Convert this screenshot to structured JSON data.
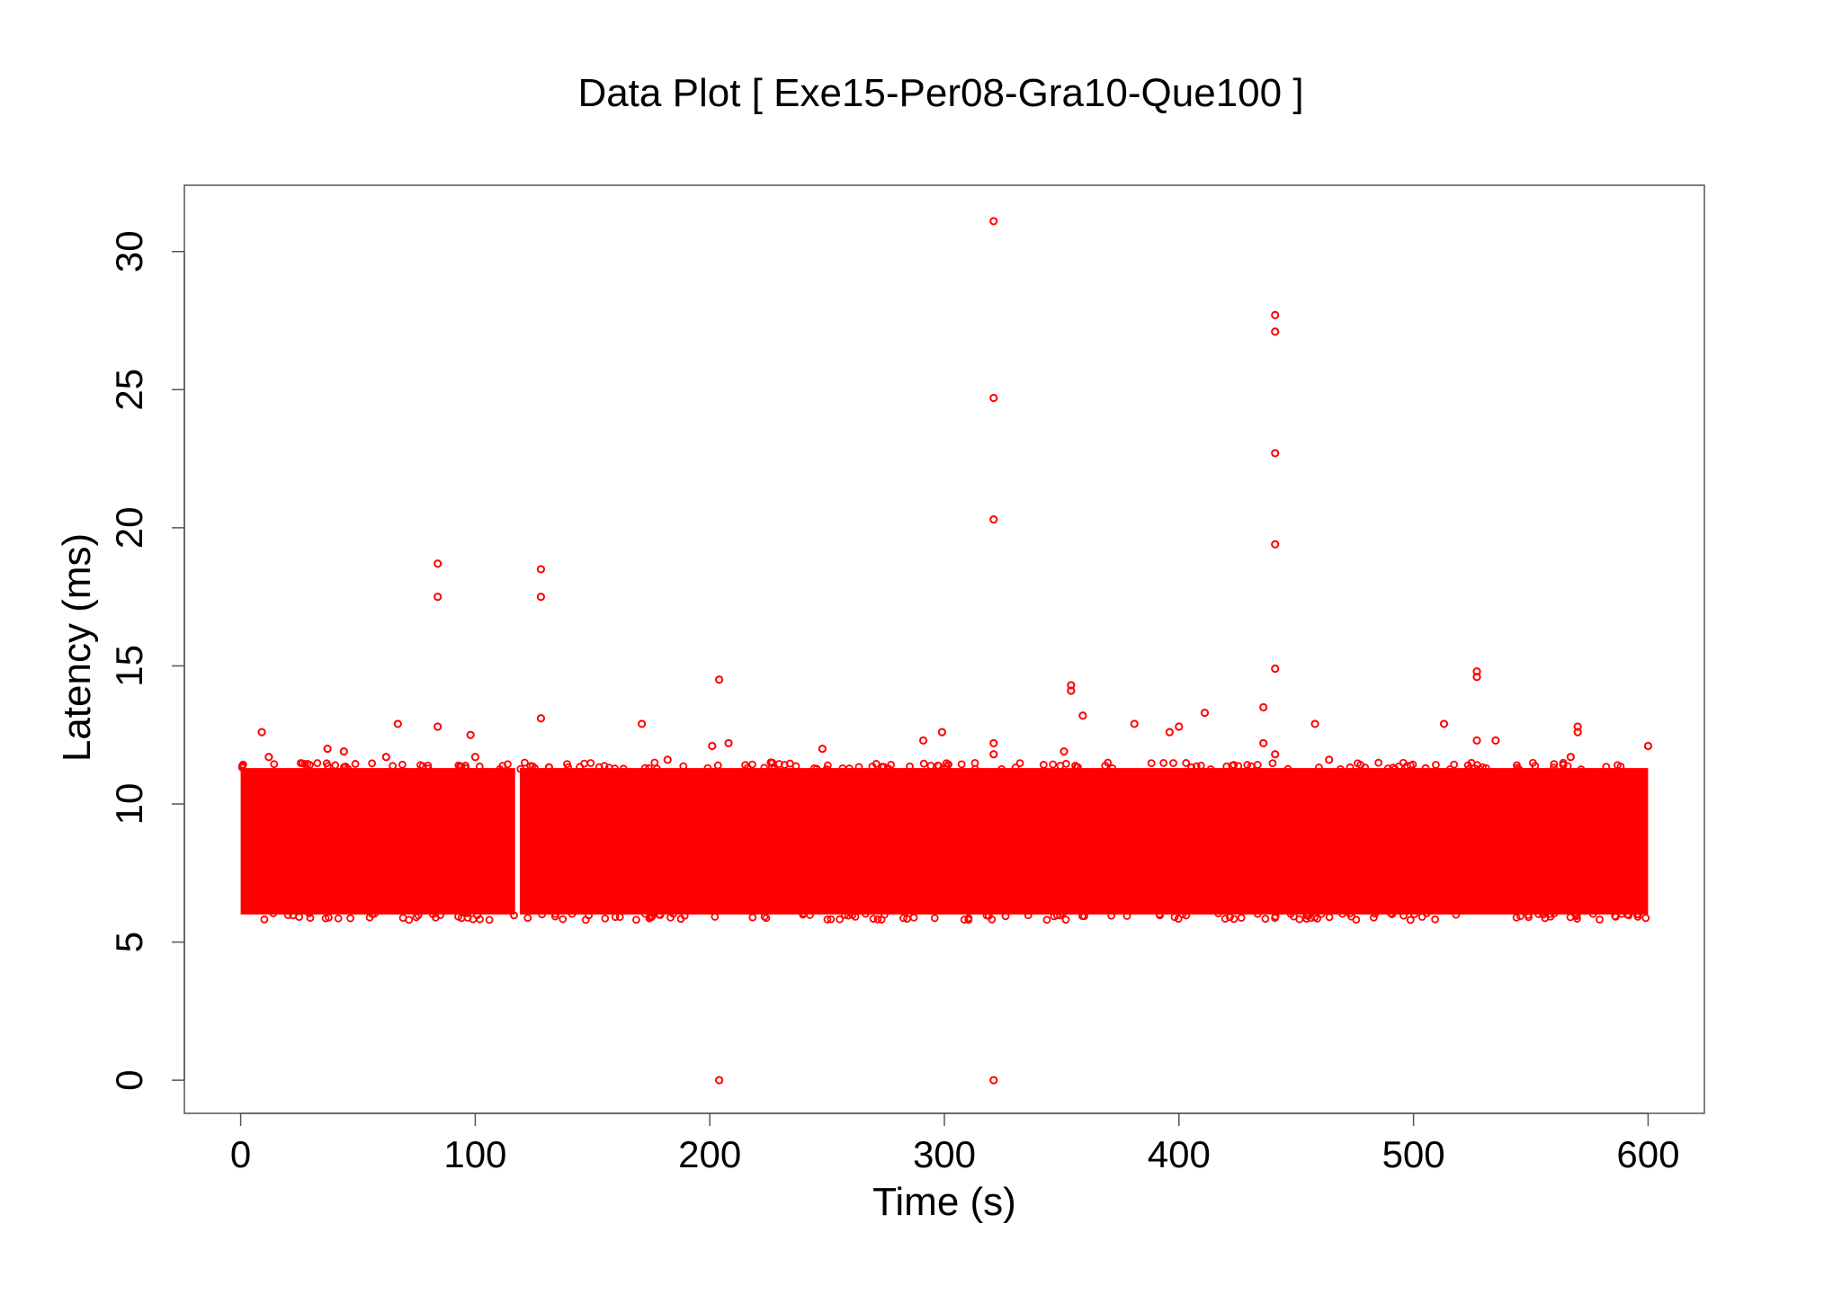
{
  "chart_data": {
    "type": "scatter",
    "title": "Data Plot [ Exe15-Per08-Gra10-Que100 ]",
    "xlabel": "Time (s)",
    "ylabel": "Latency (ms)",
    "xlim": [
      -24,
      624
    ],
    "ylim": [
      -1.2,
      32.4
    ],
    "xticks": [
      0,
      100,
      200,
      300,
      400,
      500,
      600
    ],
    "yticks": [
      0,
      5,
      10,
      15,
      20,
      25,
      30
    ],
    "x_tick_labels": [
      "0",
      "100",
      "200",
      "300",
      "400",
      "500",
      "600"
    ],
    "y_tick_labels": [
      "0",
      "5",
      "10",
      "15",
      "20",
      "25",
      "30"
    ],
    "marker_color": "#ff0000",
    "marker": "open-circle",
    "grid": false,
    "legend": "none",
    "dense_bands": [
      {
        "x": [
          0,
          117
        ],
        "y": [
          6.0,
          11.3
        ]
      },
      {
        "x": [
          119,
          600
        ],
        "y": [
          6.0,
          11.3
        ]
      }
    ],
    "outliers": [
      {
        "x": 9,
        "y": 12.6
      },
      {
        "x": 12,
        "y": 11.7
      },
      {
        "x": 37,
        "y": 12.0
      },
      {
        "x": 44,
        "y": 11.9
      },
      {
        "x": 62,
        "y": 11.7
      },
      {
        "x": 67,
        "y": 12.9
      },
      {
        "x": 84,
        "y": 18.7
      },
      {
        "x": 84,
        "y": 17.5
      },
      {
        "x": 84,
        "y": 12.8
      },
      {
        "x": 98,
        "y": 12.5
      },
      {
        "x": 100,
        "y": 11.7
      },
      {
        "x": 128,
        "y": 18.5
      },
      {
        "x": 128,
        "y": 17.5
      },
      {
        "x": 128,
        "y": 13.1
      },
      {
        "x": 171,
        "y": 12.9
      },
      {
        "x": 182,
        "y": 11.6
      },
      {
        "x": 201,
        "y": 12.1
      },
      {
        "x": 204,
        "y": 14.5
      },
      {
        "x": 204,
        "y": 0.0
      },
      {
        "x": 208,
        "y": 12.2
      },
      {
        "x": 226,
        "y": 11.5
      },
      {
        "x": 248,
        "y": 12.0
      },
      {
        "x": 291,
        "y": 12.3
      },
      {
        "x": 299,
        "y": 12.6
      },
      {
        "x": 321,
        "y": 31.1
      },
      {
        "x": 321,
        "y": 24.7
      },
      {
        "x": 321,
        "y": 20.3
      },
      {
        "x": 321,
        "y": 12.2
      },
      {
        "x": 321,
        "y": 11.8
      },
      {
        "x": 321,
        "y": 0.0
      },
      {
        "x": 351,
        "y": 11.9
      },
      {
        "x": 354,
        "y": 14.3
      },
      {
        "x": 354,
        "y": 14.1
      },
      {
        "x": 359,
        "y": 13.2
      },
      {
        "x": 381,
        "y": 12.9
      },
      {
        "x": 396,
        "y": 12.6
      },
      {
        "x": 400,
        "y": 12.8
      },
      {
        "x": 411,
        "y": 13.3
      },
      {
        "x": 436,
        "y": 13.5
      },
      {
        "x": 436,
        "y": 12.2
      },
      {
        "x": 441,
        "y": 27.7
      },
      {
        "x": 441,
        "y": 27.1
      },
      {
        "x": 441,
        "y": 22.7
      },
      {
        "x": 441,
        "y": 19.4
      },
      {
        "x": 441,
        "y": 14.9
      },
      {
        "x": 441,
        "y": 11.8
      },
      {
        "x": 458,
        "y": 12.9
      },
      {
        "x": 464,
        "y": 11.6
      },
      {
        "x": 513,
        "y": 12.9
      },
      {
        "x": 527,
        "y": 14.8
      },
      {
        "x": 527,
        "y": 14.6
      },
      {
        "x": 527,
        "y": 12.3
      },
      {
        "x": 535,
        "y": 12.3
      },
      {
        "x": 567,
        "y": 11.7
      },
      {
        "x": 570,
        "y": 12.8
      },
      {
        "x": 570,
        "y": 12.6
      },
      {
        "x": 600,
        "y": 12.1
      }
    ]
  }
}
